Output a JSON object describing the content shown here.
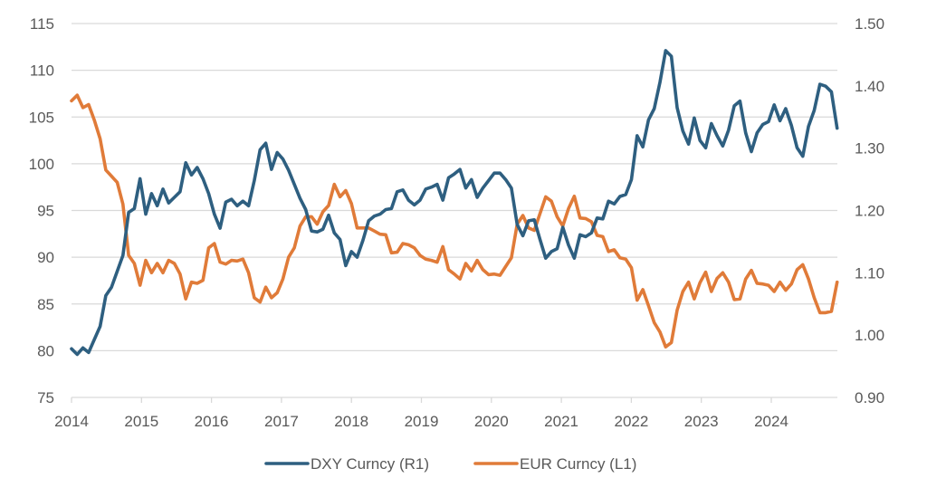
{
  "chart_data": {
    "type": "line",
    "title": "",
    "xlabel": "",
    "ylabel_left": "",
    "ylabel_right": "",
    "grid": true,
    "legend_position": "bottom",
    "x_ticks": [
      "2014",
      "2015",
      "2016",
      "2017",
      "2018",
      "2019",
      "2020",
      "2021",
      "2022",
      "2023",
      "2024"
    ],
    "x_range": [
      2014,
      2025
    ],
    "left_axis": {
      "range": [
        75,
        115
      ],
      "ticks": [
        "115",
        "110",
        "105",
        "100",
        "95",
        "90",
        "85",
        "80",
        "75"
      ],
      "tick_values": [
        115,
        110,
        105,
        100,
        95,
        90,
        85,
        80,
        75
      ]
    },
    "right_axis": {
      "range": [
        0.9,
        1.5
      ],
      "ticks": [
        "1.50",
        "1.40",
        "1.30",
        "1.20",
        "1.10",
        "1.00",
        "0.90"
      ],
      "tick_values": [
        1.5,
        1.4,
        1.3,
        1.2,
        1.1,
        1.0,
        0.9
      ]
    },
    "x_start": 2014.0,
    "x_end": 2024.94,
    "series": [
      {
        "name": "DXY Curncy",
        "legend_label": "DXY Curncy  (R1)",
        "color": "#2e5f80",
        "axis": "left",
        "values": [
          80.2,
          79.6,
          80.3,
          79.8,
          81.2,
          82.6,
          85.9,
          86.8,
          88.5,
          90.2,
          94.8,
          95.2,
          98.4,
          94.6,
          96.8,
          95.5,
          97.3,
          95.8,
          96.4,
          97.0,
          100.1,
          98.8,
          99.6,
          98.4,
          96.8,
          94.6,
          93.1,
          95.9,
          96.2,
          95.5,
          96.0,
          95.5,
          98.2,
          101.5,
          102.2,
          99.4,
          101.2,
          100.5,
          99.3,
          97.8,
          96.3,
          95.1,
          92.8,
          92.7,
          93.0,
          94.5,
          92.6,
          91.9,
          89.1,
          90.6,
          90.0,
          91.8,
          93.9,
          94.4,
          94.6,
          95.1,
          95.2,
          97.0,
          97.2,
          96.1,
          95.6,
          96.1,
          97.3,
          97.5,
          97.8,
          96.1,
          98.5,
          98.9,
          99.4,
          97.4,
          98.3,
          96.4,
          97.4,
          98.2,
          99.0,
          99.0,
          98.3,
          97.4,
          93.5,
          92.3,
          93.9,
          94.0,
          91.9,
          89.9,
          90.6,
          90.9,
          93.2,
          91.3,
          89.9,
          92.4,
          92.2,
          92.6,
          94.2,
          94.1,
          96.0,
          95.7,
          96.5,
          96.7,
          98.3,
          103.0,
          101.8,
          104.7,
          105.9,
          108.7,
          112.1,
          111.5,
          106.0,
          103.5,
          102.1,
          104.9,
          102.5,
          101.7,
          104.3,
          103.0,
          101.9,
          103.6,
          106.2,
          106.7,
          103.3,
          101.3,
          103.3,
          104.2,
          104.5,
          106.3,
          104.6,
          105.9,
          104.1,
          101.7,
          100.8,
          104.0,
          105.7,
          108.5,
          108.3,
          107.7,
          103.8
        ]
      },
      {
        "name": "EUR Curncy",
        "legend_label": "EUR Curncy  (L1)",
        "color": "#e07b39",
        "axis": "right",
        "values": [
          1.376,
          1.385,
          1.365,
          1.37,
          1.345,
          1.315,
          1.265,
          1.255,
          1.245,
          1.21,
          1.128,
          1.115,
          1.08,
          1.12,
          1.1,
          1.115,
          1.1,
          1.12,
          1.115,
          1.098,
          1.058,
          1.085,
          1.083,
          1.088,
          1.14,
          1.147,
          1.117,
          1.114,
          1.12,
          1.119,
          1.122,
          1.1,
          1.06,
          1.053,
          1.077,
          1.06,
          1.068,
          1.09,
          1.125,
          1.14,
          1.175,
          1.19,
          1.19,
          1.178,
          1.198,
          1.208,
          1.242,
          1.222,
          1.232,
          1.211,
          1.172,
          1.172,
          1.172,
          1.167,
          1.162,
          1.161,
          1.132,
          1.133,
          1.147,
          1.145,
          1.14,
          1.128,
          1.122,
          1.12,
          1.117,
          1.142,
          1.105,
          1.098,
          1.09,
          1.115,
          1.103,
          1.12,
          1.105,
          1.097,
          1.098,
          1.096,
          1.11,
          1.124,
          1.178,
          1.192,
          1.172,
          1.168,
          1.195,
          1.222,
          1.215,
          1.19,
          1.175,
          1.203,
          1.223,
          1.188,
          1.187,
          1.182,
          1.16,
          1.158,
          1.134,
          1.137,
          1.124,
          1.122,
          1.108,
          1.056,
          1.073,
          1.047,
          1.02,
          1.005,
          0.981,
          0.988,
          1.04,
          1.07,
          1.085,
          1.058,
          1.084,
          1.101,
          1.07,
          1.091,
          1.1,
          1.085,
          1.057,
          1.058,
          1.09,
          1.104,
          1.083,
          1.082,
          1.08,
          1.07,
          1.085,
          1.072,
          1.082,
          1.105,
          1.113,
          1.09,
          1.06,
          1.036,
          1.036,
          1.038,
          1.085
        ]
      }
    ]
  }
}
